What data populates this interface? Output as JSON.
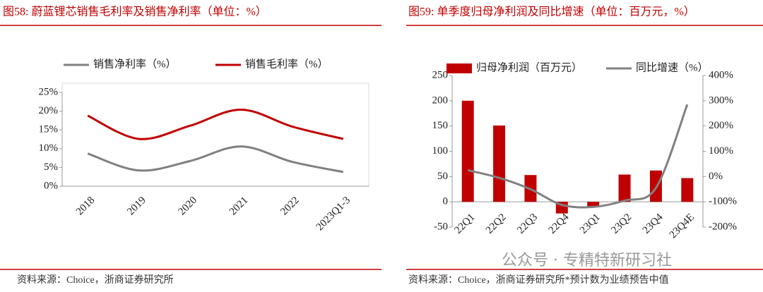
{
  "chart_data": [
    {
      "type": "line",
      "title": "图58:    蔚蓝锂芯销售毛利率及销售净利率（单位：%）",
      "categories": [
        "2018",
        "2019",
        "2020",
        "2021",
        "2022",
        "2023Q1-3"
      ],
      "series": [
        {
          "name": "销售净利率（%）",
          "color": "#808080",
          "values": [
            8.7,
            4.2,
            6.7,
            10.6,
            6.5,
            3.8
          ]
        },
        {
          "name": "销售毛利率（%）",
          "color": "#c00000",
          "values": [
            18.8,
            12.6,
            16.1,
            20.4,
            15.9,
            12.6
          ]
        }
      ],
      "ylim": [
        0,
        25
      ],
      "yticks": [
        {
          "value": 0,
          "label": "0%"
        },
        {
          "value": 5,
          "label": "5%"
        },
        {
          "value": 10,
          "label": "10%"
        },
        {
          "value": 15,
          "label": "15%"
        },
        {
          "value": 20,
          "label": "20%"
        },
        {
          "value": 25,
          "label": "25%"
        }
      ],
      "legend": "top",
      "source": "资料来源：Choice，浙商证券研究所"
    },
    {
      "type": "bar",
      "title": "图59:    单季度归母净利润及同比增速（单位：百万元，%）",
      "categories": [
        "22Q1",
        "22Q2",
        "22Q3",
        "22Q4",
        "23Q1",
        "23Q2",
        "23Q4",
        "23Q4E"
      ],
      "series": [
        {
          "name": "归母净利润（百万元）",
          "type": "bar",
          "color": "#c00000",
          "values": [
            200,
            151,
            53,
            -23,
            -10,
            54,
            62,
            47
          ]
        },
        {
          "name": "同比增速（%）",
          "type": "line",
          "axis": "y2",
          "color": "#808080",
          "values": [
            25,
            -5,
            -50,
            -112,
            -120,
            -95,
            -45,
            285
          ]
        }
      ],
      "ylim": [
        -50,
        250
      ],
      "yticks": [
        -50,
        0,
        50,
        100,
        150,
        200,
        250
      ],
      "y2lim": [
        -200,
        400
      ],
      "y2ticks": [
        {
          "value": -200,
          "label": "-200%"
        },
        {
          "value": -100,
          "label": "-100%"
        },
        {
          "value": 0,
          "label": "0%"
        },
        {
          "value": 100,
          "label": "100%"
        },
        {
          "value": 200,
          "label": "200%"
        },
        {
          "value": 300,
          "label": "300%"
        },
        {
          "value": 400,
          "label": "400%"
        }
      ],
      "legend": "top",
      "source": "资料来源：Choice，浙商证券研究所*预计数为业绩预告中值"
    }
  ],
  "watermark": "公众号 · 专精特新研习社"
}
